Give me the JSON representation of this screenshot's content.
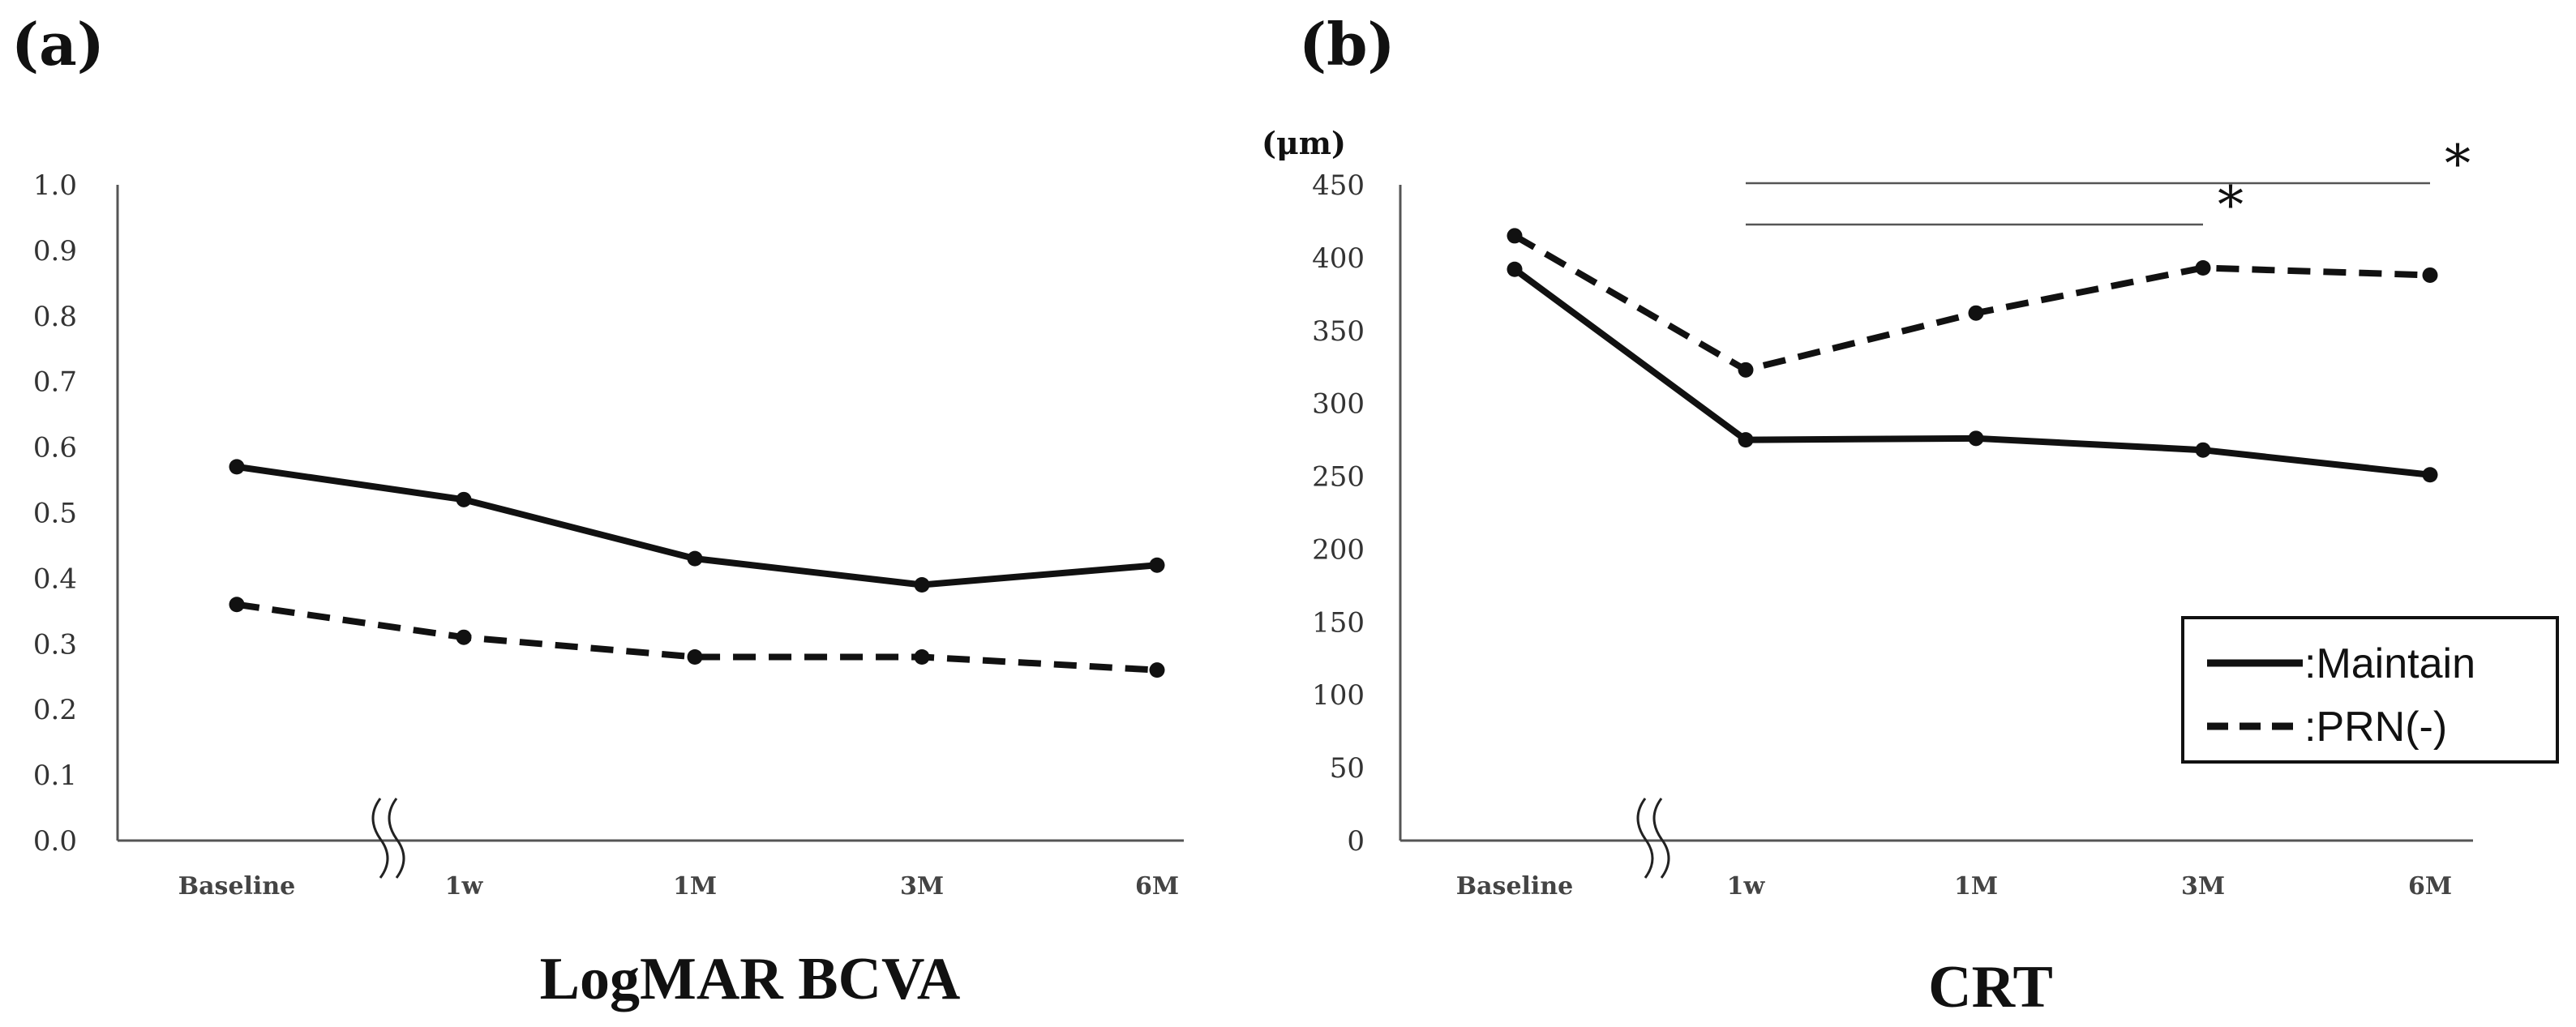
{
  "chart_data": [
    {
      "type": "line",
      "panel_label": "(a)",
      "title": "LogMAR BCVA",
      "ylabel": "",
      "ylim": [
        0,
        1.0
      ],
      "yticks": [
        "0.0",
        "0.1",
        "0.2",
        "0.3",
        "0.4",
        "0.5",
        "0.6",
        "0.7",
        "0.8",
        "0.9",
        "1.0"
      ],
      "categories": [
        "Baseline",
        "1w",
        "1M",
        "3M",
        "6M"
      ],
      "axis_break": "between Baseline and 1w",
      "series": [
        {
          "name": "Maintain",
          "style": "solid",
          "values": [
            0.57,
            0.52,
            0.43,
            0.39,
            0.42
          ]
        },
        {
          "name": "PRN(-)",
          "style": "dashed",
          "values": [
            0.36,
            0.31,
            0.28,
            0.28,
            0.26
          ]
        }
      ]
    },
    {
      "type": "line",
      "panel_label": "(b)",
      "title": "CRT",
      "ylabel": "(μm)",
      "ylim": [
        0,
        450
      ],
      "yticks": [
        "0",
        "50",
        "100",
        "150",
        "200",
        "250",
        "300",
        "350",
        "400",
        "450"
      ],
      "categories": [
        "Baseline",
        "1w",
        "1M",
        "3M",
        "6M"
      ],
      "axis_break": "between Baseline and 1w",
      "series": [
        {
          "name": "Maintain",
          "style": "solid",
          "values": [
            392,
            275,
            276,
            268,
            251
          ]
        },
        {
          "name": "PRN(-)",
          "style": "dashed",
          "values": [
            415,
            323,
            362,
            393,
            388
          ]
        }
      ],
      "significance": [
        {
          "from": "1w",
          "to": "6M",
          "label": "*"
        },
        {
          "from": "1w",
          "to": "3M",
          "label": "*"
        }
      ],
      "legend": {
        "position": "lower-right",
        "entries": [
          {
            "style": "solid",
            "label": ":Maintain"
          },
          {
            "style": "dashed",
            "label": ":PRN(-)"
          }
        ]
      }
    }
  ]
}
